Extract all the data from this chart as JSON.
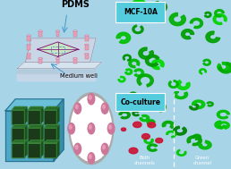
{
  "bg_color": "#a8d4e8",
  "fig_width": 2.58,
  "fig_height": 1.89,
  "dpi": 100,
  "label_pdms": "PDMS",
  "label_medium": "Medium well",
  "label_mcf": "MCF-10A",
  "label_coculture": "Co-culture",
  "label_both": "Both\nchannels",
  "label_green": "Green\nchannel",
  "pillar_color": "#e8a0b8",
  "chip_top_color": "#c8e8c0",
  "chip_border_color": "#7a007a",
  "chip_base_color": "#d8d8e8",
  "arrow_color": "#4499cc",
  "blue_cube_color": "#5aabcc",
  "dark_cube_color": "#1a3a1a",
  "dark_cube_edge": "#3a8a3a",
  "green_cell_color": "#00dd00",
  "red_cell_color": "#cc1133",
  "mcf_box_color": "#55ccdd",
  "co_box_color": "#55ccdd",
  "dish_color": "#e8e8e8",
  "dish_bg": "#c8c8c8",
  "sphere_color": "#cc7799",
  "sphere_hi": "#eea0bb"
}
